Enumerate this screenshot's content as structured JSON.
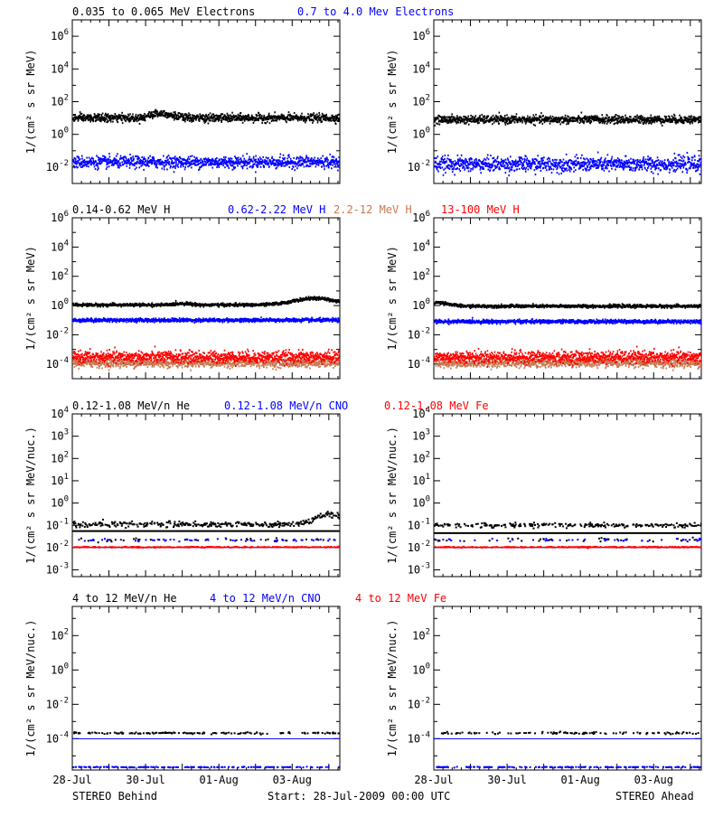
{
  "colors": {
    "black": "#000000",
    "blue": "#0000ff",
    "salmon": "#c87850",
    "red": "#ff0000",
    "frame": "#000000",
    "background": "#ffffff"
  },
  "footer": {
    "left": "STEREO Behind",
    "center": "Start: 28-Jul-2009 00:00 UTC",
    "right": "STEREO Ahead"
  },
  "x_axis": {
    "ticks": [
      {
        "label": "28-Jul",
        "day": 0
      },
      {
        "label": "30-Jul",
        "day": 2
      },
      {
        "label": "01-Aug",
        "day": 4
      },
      {
        "label": "03-Aug",
        "day": 6
      }
    ],
    "range_days": [
      0,
      7.3
    ]
  },
  "chart_data": [
    {
      "type": "scatter",
      "row": 0,
      "title_items": [
        {
          "text": "0.035 to 0.065 MeV Electrons",
          "color": "#000000"
        },
        {
          "text": "0.7 to 4.0 Mev Electrons",
          "color": "#0000ff"
        }
      ],
      "ylabel": "1/(cm² s sr MeV)",
      "ylim": [
        0.001,
        10000000
      ],
      "yscale": "log",
      "yticks": [
        {
          "exp": "-2",
          "value": 0.01
        },
        {
          "exp": "0",
          "value": 1
        },
        {
          "exp": "2",
          "value": 100
        },
        {
          "exp": "4",
          "value": 10000
        },
        {
          "exp": "6",
          "value": 1000000
        }
      ],
      "panels": [
        {
          "spacecraft": "Behind",
          "series": [
            {
              "color": "#000000",
              "level": 10,
              "scatter_dex": 0.12,
              "bumps": [
                {
                  "center": 2.4,
                  "width": 0.4,
                  "dex": 0.3
                }
              ]
            },
            {
              "color": "#0000ff",
              "level": 0.02,
              "scatter_dex": 0.18,
              "bumps": []
            }
          ]
        },
        {
          "spacecraft": "Ahead",
          "series": [
            {
              "color": "#000000",
              "level": 8,
              "scatter_dex": 0.12,
              "bumps": []
            },
            {
              "color": "#0000ff",
              "level": 0.015,
              "scatter_dex": 0.22,
              "bumps": []
            }
          ]
        }
      ]
    },
    {
      "type": "scatter",
      "row": 1,
      "title_items": [
        {
          "text": "0.14-0.62 MeV H",
          "color": "#000000"
        },
        {
          "text": "0.62-2.22 MeV H",
          "color": "#0000ff"
        },
        {
          "text": "2.2-12 MeV H",
          "color": "#c87850"
        },
        {
          "text": "13-100 MeV H",
          "color": "#ff0000"
        }
      ],
      "ylabel": "1/(cm² s sr MeV)",
      "ylim": [
        1e-05,
        1000000
      ],
      "yscale": "log",
      "yticks": [
        {
          "exp": "-4",
          "value": 0.0001
        },
        {
          "exp": "-2",
          "value": 0.01
        },
        {
          "exp": "0",
          "value": 1
        },
        {
          "exp": "2",
          "value": 100
        },
        {
          "exp": "4",
          "value": 10000
        },
        {
          "exp": "6",
          "value": 1000000
        }
      ],
      "panels": [
        {
          "spacecraft": "Behind",
          "series": [
            {
              "color": "#000000",
              "level": 1.1,
              "scatter_dex": 0.05,
              "bumps": [
                {
                  "center": 6.6,
                  "width": 0.8,
                  "dex": 0.45
                },
                {
                  "center": 3.0,
                  "width": 0.3,
                  "dex": 0.1
                }
              ]
            },
            {
              "color": "#0000ff",
              "level": 0.1,
              "scatter_dex": 0.06,
              "bumps": []
            },
            {
              "color": "#c87850",
              "level": 0.00012,
              "scatter_dex": 0.15,
              "bumps": []
            },
            {
              "color": "#ff0000",
              "level": 0.0003,
              "scatter_dex": 0.2,
              "bumps": []
            }
          ]
        },
        {
          "spacecraft": "Ahead",
          "series": [
            {
              "color": "#000000",
              "level": 0.9,
              "scatter_dex": 0.05,
              "bumps": [
                {
                  "center": 0.1,
                  "width": 0.4,
                  "dex": 0.25
                }
              ]
            },
            {
              "color": "#0000ff",
              "level": 0.08,
              "scatter_dex": 0.06,
              "bumps": []
            },
            {
              "color": "#c87850",
              "level": 0.00012,
              "scatter_dex": 0.15,
              "bumps": []
            },
            {
              "color": "#ff0000",
              "level": 0.0003,
              "scatter_dex": 0.2,
              "bumps": []
            }
          ]
        }
      ]
    },
    {
      "type": "scatter",
      "row": 2,
      "title_items": [
        {
          "text": "0.12-1.08 MeV/n He",
          "color": "#000000"
        },
        {
          "text": "0.12-1.08 MeV/n CNO",
          "color": "#0000ff"
        },
        {
          "text": "0.12-1.08 MeV Fe",
          "color": "#ff0000"
        }
      ],
      "ylabel": "1/(cm² s sr MeV/nuc.)",
      "ylim": [
        0.0005,
        10000
      ],
      "yscale": "log",
      "yticks": [
        {
          "base": "10",
          "exp": "-3",
          "value": 0.001
        },
        {
          "base": "10",
          "exp": "-2",
          "value": 0.01
        },
        {
          "base": "10",
          "exp": "-1",
          "value": 0.1
        },
        {
          "base": "10",
          "exp": "0",
          "value": 1
        },
        {
          "base": "10",
          "exp": "1",
          "value": 10
        },
        {
          "base": "10",
          "exp": "2",
          "value": 100
        },
        {
          "base": "10",
          "exp": "3",
          "value": 1000
        },
        {
          "base": "10",
          "exp": "4",
          "value": 10000
        }
      ],
      "panels": [
        {
          "spacecraft": "Behind",
          "lines": [
            {
              "color": "#000000",
              "level": 0.055
            },
            {
              "color": "#0000ff",
              "level": 0.01
            },
            {
              "color": "#ff0000",
              "level": 0.0105
            }
          ],
          "dots": [
            {
              "color": "#000000",
              "level": 0.11,
              "density": 0.55,
              "scatter_dex": 0.06,
              "bumps": [
                {
                  "center": 7.0,
                  "width": 0.5,
                  "dex": 0.45
                }
              ]
            },
            {
              "color": "#000000",
              "level": 0.022,
              "density": 0.05,
              "scatter_dex": 0.05,
              "bumps": []
            },
            {
              "color": "#0000ff",
              "level": 0.022,
              "density": 0.08,
              "scatter_dex": 0.03,
              "bumps": []
            },
            {
              "color": "#ff0000",
              "level": 0.0105,
              "density": 0.35,
              "scatter_dex": 0.01,
              "bumps": []
            }
          ]
        },
        {
          "spacecraft": "Ahead",
          "lines": [
            {
              "color": "#000000",
              "level": 0.045
            },
            {
              "color": "#0000ff",
              "level": 0.01
            },
            {
              "color": "#ff0000",
              "level": 0.0105
            }
          ],
          "dots": [
            {
              "color": "#000000",
              "level": 0.1,
              "density": 0.4,
              "scatter_dex": 0.05,
              "bumps": []
            },
            {
              "color": "#000000",
              "level": 0.022,
              "density": 0.05,
              "scatter_dex": 0.05,
              "bumps": []
            },
            {
              "color": "#0000ff",
              "level": 0.022,
              "density": 0.08,
              "scatter_dex": 0.03,
              "bumps": []
            },
            {
              "color": "#ff0000",
              "level": 0.0105,
              "density": 0.35,
              "scatter_dex": 0.01,
              "bumps": []
            }
          ]
        }
      ]
    },
    {
      "type": "scatter",
      "row": 3,
      "title_items": [
        {
          "text": "4 to 12 MeV/n He",
          "color": "#000000"
        },
        {
          "text": "4 to 12 MeV/n CNO",
          "color": "#0000ff"
        },
        {
          "text": "4 to 12 MeV Fe",
          "color": "#ff0000"
        }
      ],
      "ylabel": "1/(cm² s sr MeV/nuc.)",
      "ylim": [
        1.5e-06,
        5000
      ],
      "yscale": "log",
      "yticks": [
        {
          "exp": "-4",
          "value": 0.0001
        },
        {
          "exp": "-2",
          "value": 0.01
        },
        {
          "exp": "0",
          "value": 1
        },
        {
          "exp": "2",
          "value": 100
        }
      ],
      "panels": [
        {
          "spacecraft": "Behind",
          "lines": [
            {
              "color": "#0000ff",
              "level": 0.0001
            }
          ],
          "dots": [
            {
              "color": "#000000",
              "level": 0.00021,
              "density": 0.2,
              "scatter_dex": 0.03,
              "bumps": []
            },
            {
              "color": "#0000ff",
              "level": 2.2e-06,
              "density": 0.25,
              "scatter_dex": 0.01,
              "bumps": []
            }
          ]
        },
        {
          "spacecraft": "Ahead",
          "lines": [
            {
              "color": "#0000ff",
              "level": 0.0001
            }
          ],
          "dots": [
            {
              "color": "#000000",
              "level": 0.00021,
              "density": 0.2,
              "scatter_dex": 0.03,
              "bumps": []
            },
            {
              "color": "#0000ff",
              "level": 2.2e-06,
              "density": 0.25,
              "scatter_dex": 0.01,
              "bumps": []
            }
          ]
        }
      ]
    }
  ]
}
